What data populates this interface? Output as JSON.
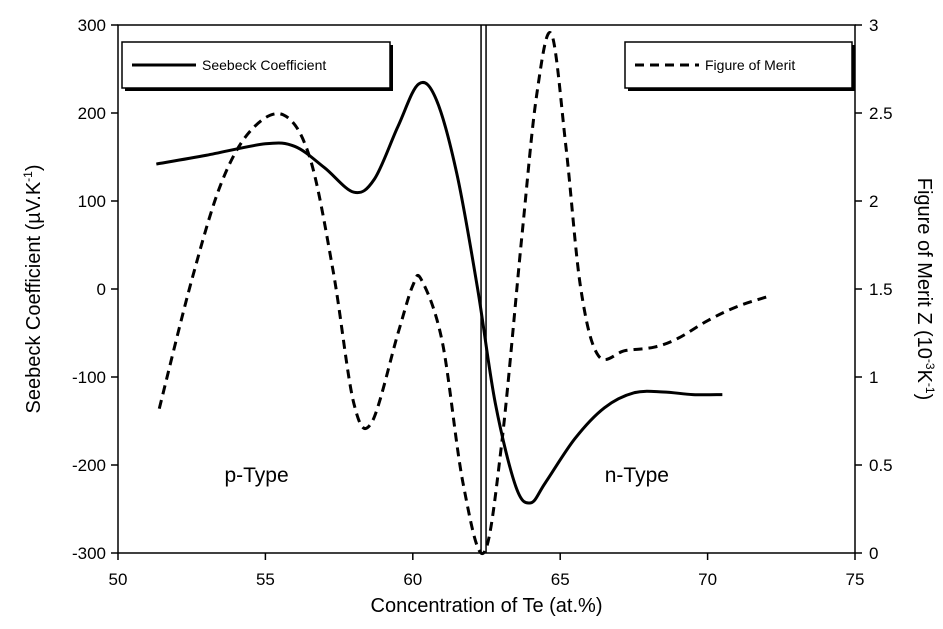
{
  "chart_data": {
    "type": "line",
    "xlabel": "Concentration of Te (at.%)",
    "ylabel": "Seebeck Coefficient",
    "ylabel_unit_prefix": "(µV.K",
    "ylabel_unit_exp": "-1",
    "ylabel_unit_suffix": ")",
    "y2label": "Figure of Merit Z",
    "y2label_unit_prefix": "(10",
    "y2label_unit_exp1": "-3",
    "y2label_unit_mid": "K",
    "y2label_unit_exp2": "-1",
    "y2label_unit_suffix": ")",
    "xlim": [
      50,
      75
    ],
    "ylim": [
      -300,
      300
    ],
    "y2lim": [
      0,
      3
    ],
    "x_ticks": [
      50,
      55,
      60,
      65,
      70,
      75
    ],
    "y_ticks": [
      -300,
      -200,
      -100,
      0,
      100,
      200,
      300
    ],
    "y2_ticks": [
      0,
      0.5,
      1,
      1.5,
      2,
      2.5,
      3
    ],
    "y2_tick_labels": [
      "0",
      "0.5",
      "1",
      "1.5",
      "2",
      "2.5",
      "3"
    ],
    "grid": false,
    "divider_x": 62.4,
    "annotations": [
      {
        "text": "p-Type",
        "x": 54.7,
        "y": -210
      },
      {
        "text": "n-Type",
        "x": 67.6,
        "y": -210
      }
    ],
    "series": [
      {
        "name": "Seebeck Coefficient",
        "axis": "left",
        "style": "solid",
        "color": "#000000",
        "x": [
          51.3,
          53.0,
          55.0,
          56.0,
          57.0,
          58.0,
          58.7,
          59.5,
          60.2,
          60.8,
          61.5,
          62.2,
          62.8,
          63.5,
          64.0,
          64.5,
          65.5,
          66.5,
          67.5,
          68.5,
          69.5,
          70.5
        ],
        "y": [
          142,
          152,
          165,
          162,
          138,
          110,
          125,
          185,
          233,
          215,
          130,
          0,
          -130,
          -225,
          -243,
          -220,
          -170,
          -135,
          -118,
          -117,
          -120,
          -120
        ]
      },
      {
        "name": "Figure of Merit",
        "axis": "right",
        "style": "dashed",
        "color": "#000000",
        "x": [
          51.4,
          52.5,
          53.5,
          54.5,
          55.6,
          56.5,
          57.3,
          58.0,
          58.6,
          59.5,
          60.0,
          60.3,
          61.0,
          61.7,
          62.4,
          63.0,
          63.7,
          64.2,
          64.7,
          65.2,
          65.7,
          66.3,
          67.2,
          68.2,
          69.0,
          70.0,
          71.0,
          72.1
        ],
        "y": [
          0.82,
          1.55,
          2.1,
          2.4,
          2.49,
          2.25,
          1.6,
          0.85,
          0.74,
          1.25,
          1.52,
          1.55,
          1.2,
          0.4,
          0.0,
          0.6,
          1.8,
          2.6,
          2.95,
          2.3,
          1.5,
          1.12,
          1.15,
          1.17,
          1.22,
          1.32,
          1.4,
          1.46
        ]
      }
    ],
    "legend": [
      {
        "text": "Seebeck Coefficient",
        "style": "solid",
        "placement": "top-left"
      },
      {
        "text": "Figure of Merit",
        "style": "dashed",
        "placement": "top-right"
      }
    ]
  }
}
